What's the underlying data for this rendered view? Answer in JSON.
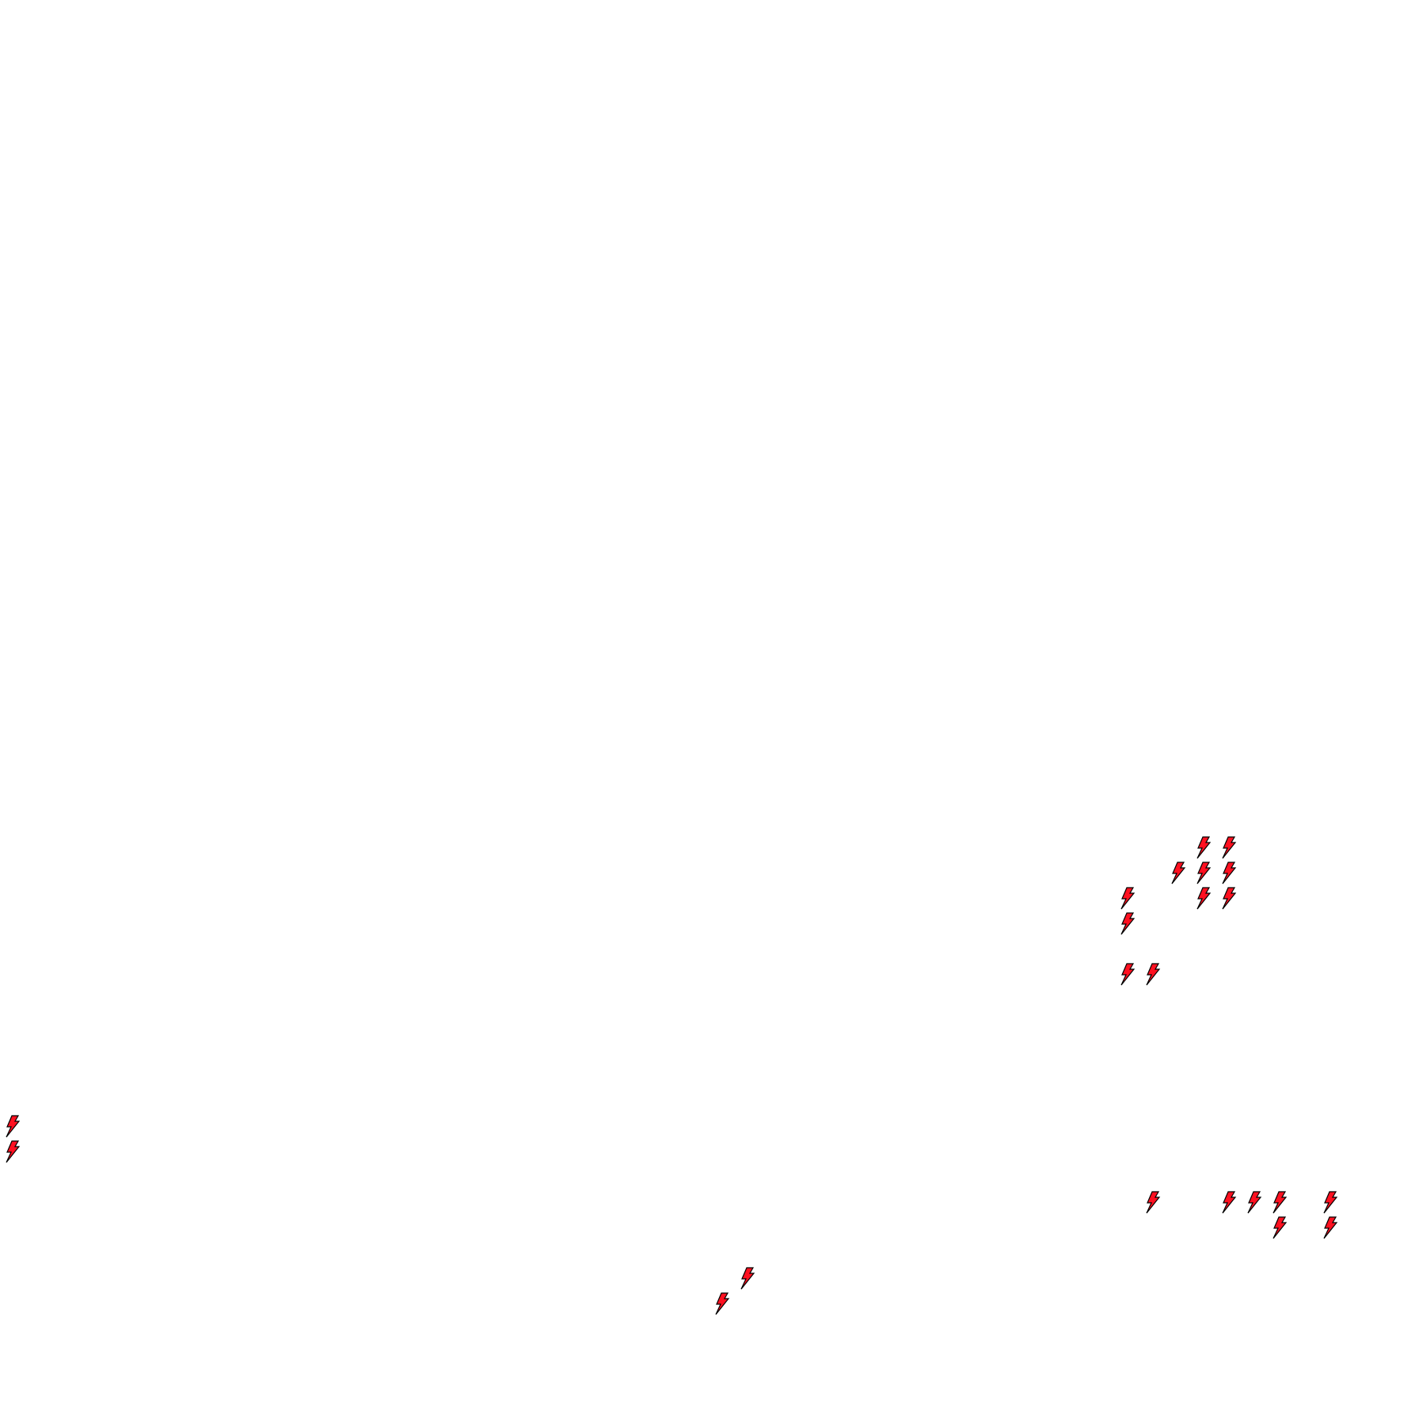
{
  "map": {
    "marker_icon": "lightning-bolt-icon",
    "marker_fill": "#ff1020",
    "marker_stroke": "#000000",
    "background": "#ffffff"
  }
}
